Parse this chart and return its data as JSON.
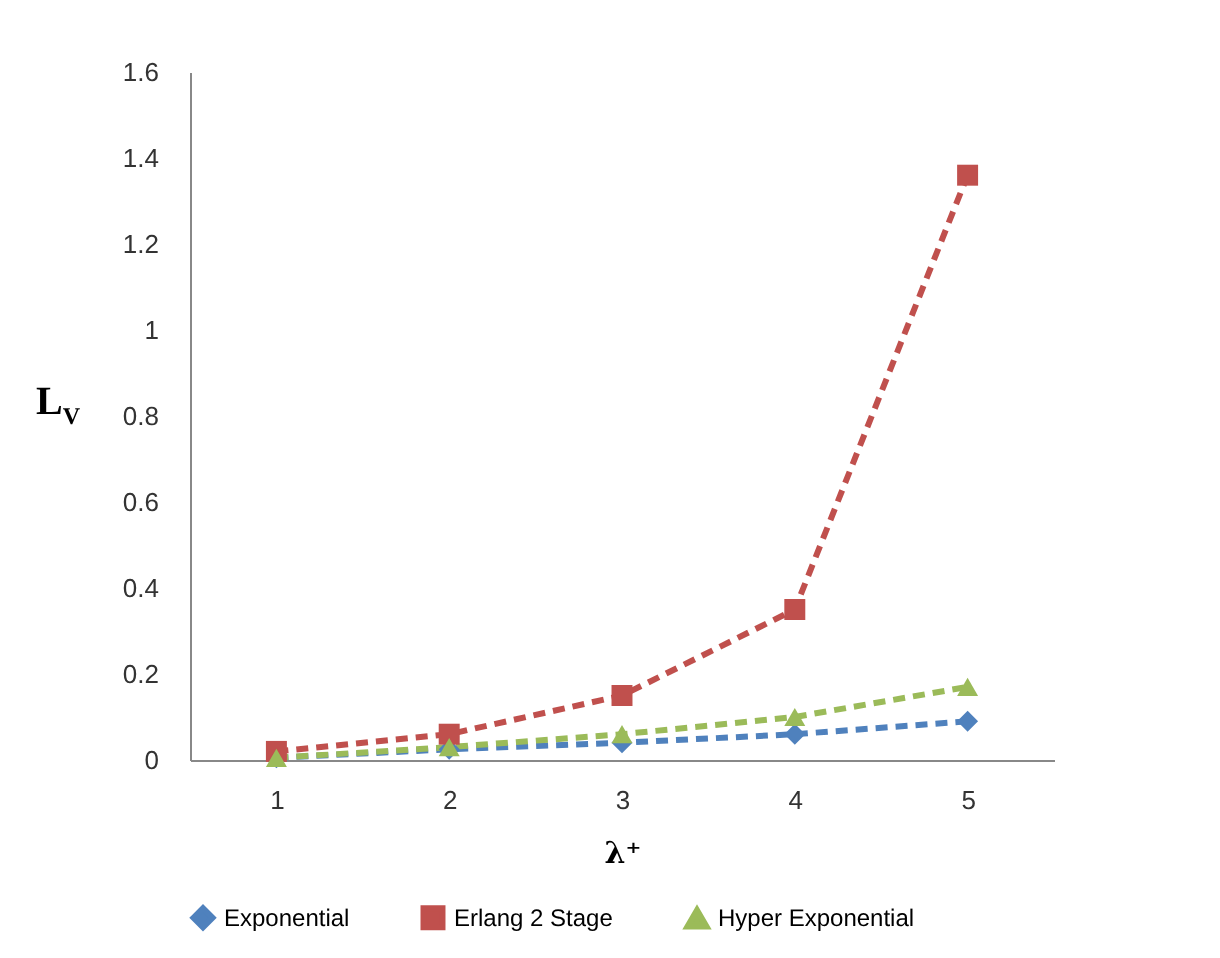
{
  "chart_data": {
    "type": "line",
    "xlabel": "λ⁺",
    "ylabel": "L$_{V}$",
    "categories": [
      "1",
      "2",
      "3",
      "4",
      "5"
    ],
    "series": [
      {
        "name": "Exponential",
        "color": "#4f81bd",
        "marker": "diamond",
        "values": [
          0.005,
          0.025,
          0.04,
          0.06,
          0.09
        ]
      },
      {
        "name": "Erlang 2 Stage",
        "color": "#c0504d",
        "marker": "square",
        "values": [
          0.02,
          0.06,
          0.15,
          0.35,
          1.36
        ]
      },
      {
        "name": "Hyper Exponential",
        "color": "#9bbb59",
        "marker": "triangle",
        "values": [
          0.005,
          0.03,
          0.06,
          0.1,
          0.17
        ]
      }
    ],
    "ylim": [
      0,
      1.6
    ],
    "yticks": [
      0,
      0.2,
      0.4,
      0.6,
      0.8,
      1,
      1.2,
      1.4,
      1.6
    ],
    "grid": false,
    "legend": "bottom",
    "line_style": "dashed"
  }
}
